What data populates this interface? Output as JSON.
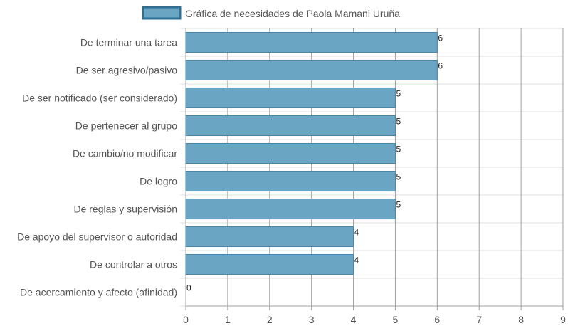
{
  "chart_data": {
    "type": "bar",
    "orientation": "horizontal",
    "categories": [
      "De terminar una tarea",
      "De ser agresivo/pasivo",
      "De ser notificado (ser considerado)",
      "De pertenecer al grupo",
      "De cambio/no modificar",
      "De logro",
      "De reglas y supervisión",
      "De apoyo del supervisor o autoridad",
      "De controlar a otros",
      "De acercamiento y afecto (afinidad)"
    ],
    "series": [
      {
        "name": "Gráfica de necesidades de Paola Mamani Uruña",
        "values": [
          6,
          6,
          5,
          5,
          5,
          5,
          5,
          4,
          4,
          0
        ]
      }
    ],
    "xlim": [
      0,
      9
    ],
    "x_ticks": [
      "0",
      "1",
      "2",
      "3",
      "4",
      "5",
      "6",
      "7",
      "8",
      "9"
    ],
    "grid": true,
    "legend_position": "top",
    "colors": {
      "bar_fill": "#6aa5c3",
      "bar_stroke": "#4a85a3",
      "legend_fill": "#6aa5c3",
      "legend_stroke": "#2f6f93",
      "grid_major": "#a0a0a0",
      "grid_minor": "#e0e0e0",
      "text": "#555555",
      "value_text": "#222222"
    }
  }
}
